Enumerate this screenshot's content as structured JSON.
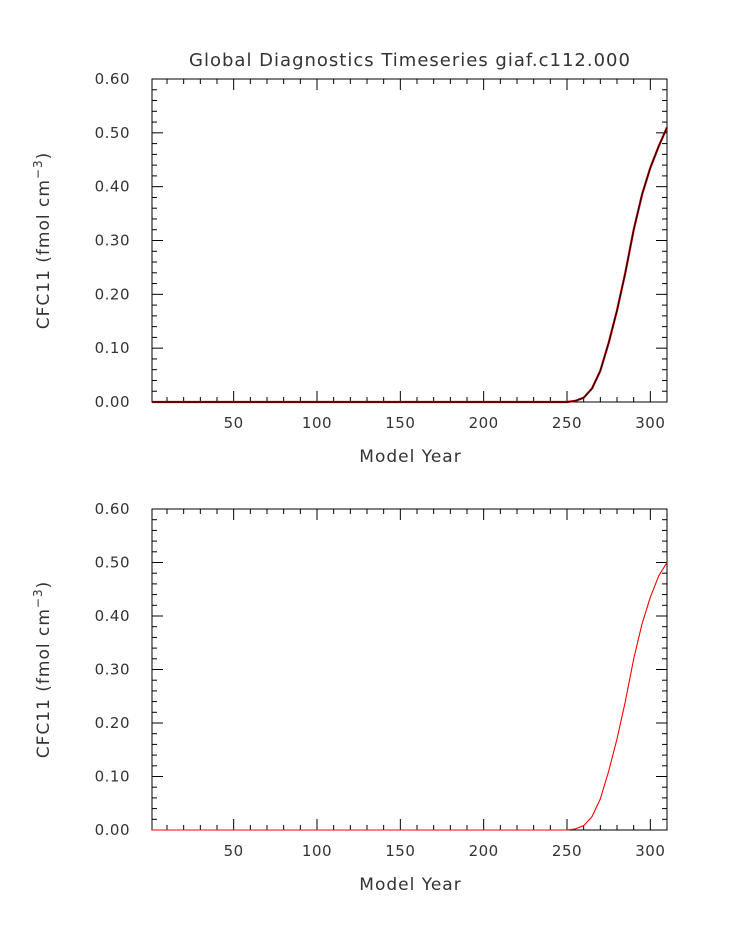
{
  "title": "Global Diagnostics Timeseries giaf.c112.000",
  "colors": {
    "top_line_outer": "#cc0000",
    "top_line_inner": "#000000",
    "bottom_line": "#ff0000",
    "axis": "#000000",
    "text": "#333333"
  },
  "chart_data": [
    {
      "type": "line",
      "title": "Global Diagnostics Timeseries giaf.c112.000",
      "xlabel": "Model Year",
      "ylabel_main": "CFC11  (fmol cm",
      "ylabel_sup": "−3",
      "ylabel_close": ")",
      "xlim": [
        1,
        310
      ],
      "ylim": [
        0,
        0.6
      ],
      "xticks": [
        50,
        100,
        150,
        200,
        250,
        300
      ],
      "xtick_labels": [
        "50",
        "100",
        "150",
        "200",
        "250",
        "300"
      ],
      "yticks": [
        0,
        0.1,
        0.2,
        0.3,
        0.4,
        0.5,
        0.6
      ],
      "ytick_labels": [
        "0.00",
        "0.10",
        "0.20",
        "0.30",
        "0.40",
        "0.50",
        "0.60"
      ],
      "grid": false,
      "series": [
        {
          "x": [
            1,
            250,
            255,
            260,
            265,
            270,
            275,
            280,
            285,
            290,
            295,
            300,
            305,
            310
          ],
          "y": [
            0.0,
            0.0,
            0.002,
            0.008,
            0.025,
            0.058,
            0.11,
            0.17,
            0.24,
            0.32,
            0.385,
            0.435,
            0.475,
            0.51
          ]
        }
      ]
    },
    {
      "type": "line",
      "title": "",
      "xlabel": "Model Year",
      "ylabel_main": "CFC11  (fmol cm",
      "ylabel_sup": "−3",
      "ylabel_close": ")",
      "xlim": [
        1,
        310
      ],
      "ylim": [
        0,
        0.6
      ],
      "xticks": [
        50,
        100,
        150,
        200,
        250,
        300
      ],
      "xtick_labels": [
        "50",
        "100",
        "150",
        "200",
        "250",
        "300"
      ],
      "yticks": [
        0,
        0.1,
        0.2,
        0.3,
        0.4,
        0.5,
        0.6
      ],
      "ytick_labels": [
        "0.00",
        "0.10",
        "0.20",
        "0.30",
        "0.40",
        "0.50",
        "0.60"
      ],
      "grid": false,
      "series": [
        {
          "x": [
            1,
            250,
            255,
            260,
            265,
            270,
            275,
            280,
            285,
            290,
            295,
            300,
            305,
            310
          ],
          "y": [
            0.0,
            0.0,
            0.002,
            0.008,
            0.025,
            0.058,
            0.11,
            0.17,
            0.24,
            0.32,
            0.385,
            0.435,
            0.475,
            0.5
          ]
        }
      ]
    }
  ]
}
